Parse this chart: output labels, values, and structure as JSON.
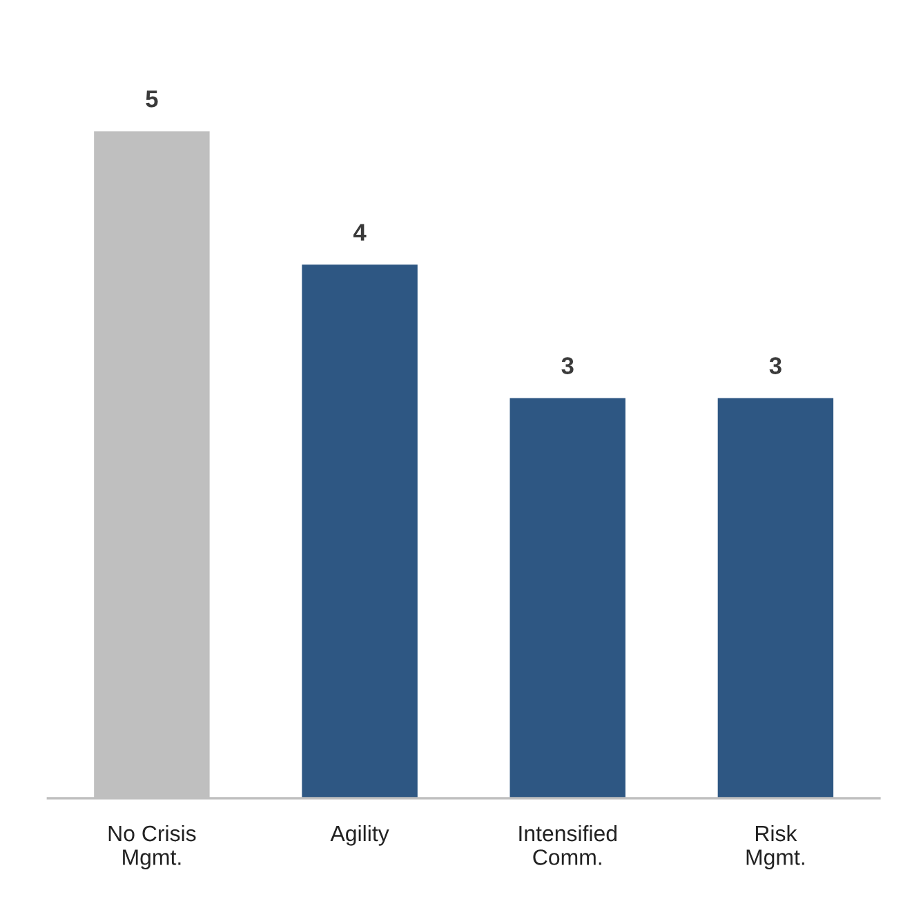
{
  "chart_data": {
    "type": "bar",
    "categories": [
      "No Crisis\nMgmt.",
      "Agility",
      "Intensified\nComm.",
      "Risk\nMgmt."
    ],
    "values": [
      5,
      4,
      3,
      3
    ],
    "colors": [
      "#bfbfbf",
      "#2e5783",
      "#2e5783",
      "#2e5783"
    ],
    "data_labels": true,
    "grid": false,
    "legend": false,
    "tick_labels": "x"
  }
}
